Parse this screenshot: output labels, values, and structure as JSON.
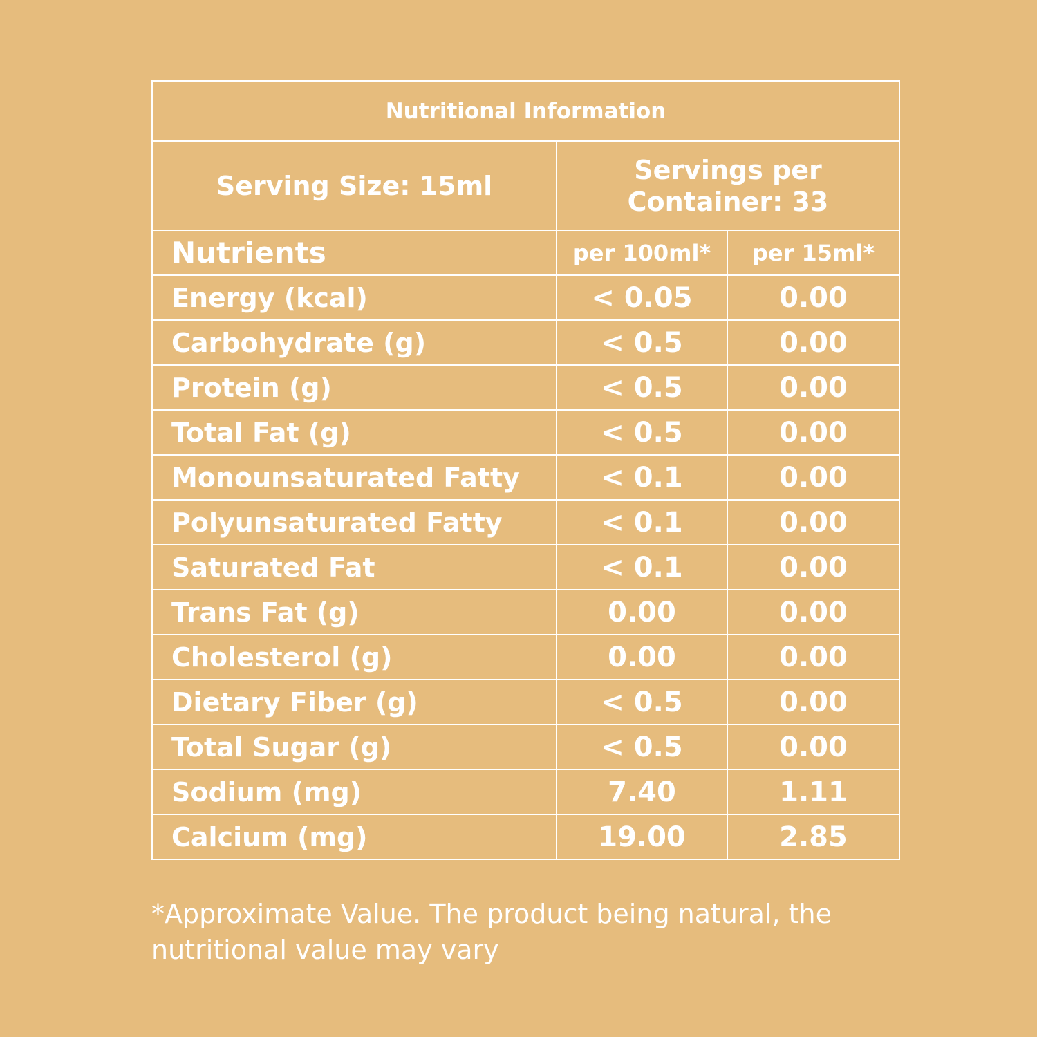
{
  "table": {
    "title": "Nutritional Information",
    "serving_size": "Serving Size: 15ml",
    "servings_per_container": "Servings per Container: 33",
    "header": [
      "Nutrients",
      "per 100ml*",
      "per 15ml*"
    ],
    "rows": [
      [
        "Energy (kcal)",
        "< 0.05",
        "0.00"
      ],
      [
        "Carbohydrate (g)",
        "< 0.5",
        "0.00"
      ],
      [
        "Protein (g)",
        "< 0.5",
        "0.00"
      ],
      [
        "Total Fat (g)",
        "< 0.5",
        "0.00"
      ],
      [
        "Monounsaturated Fatty",
        "< 0.1",
        "0.00"
      ],
      [
        "Polyunsaturated Fatty",
        "< 0.1",
        "0.00"
      ],
      [
        "Saturated Fat",
        "< 0.1",
        "0.00"
      ],
      [
        "Trans Fat (g)",
        "0.00",
        "0.00"
      ],
      [
        "Cholesterol (g)",
        "0.00",
        "0.00"
      ],
      [
        "Dietary Fiber (g)",
        "< 0.5",
        "0.00"
      ],
      [
        "Total Sugar (g)",
        "< 0.5",
        "0.00"
      ],
      [
        "Sodium (mg)",
        "7.40",
        "1.11"
      ],
      [
        "Calcium (mg)",
        "19.00",
        "2.85"
      ]
    ]
  },
  "footnote": "*Approximate Value. The product being natural, the nutritional value may vary"
}
